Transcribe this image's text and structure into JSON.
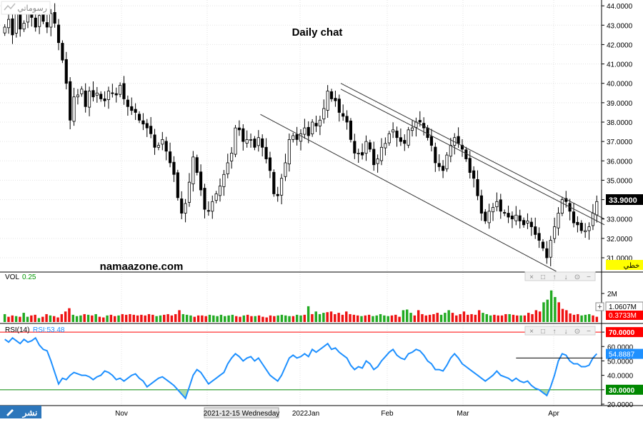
{
  "chart_data": [
    {
      "type": "candlestick",
      "title": "Daily chat",
      "watermark": "namaazone.com",
      "ylim": [
        30.3,
        44.3
      ],
      "y_ticks": [
        "44.0000",
        "43.0000",
        "42.0000",
        "41.0000",
        "40.0000",
        "39.0000",
        "38.0000",
        "37.0000",
        "36.0000",
        "35.0000",
        "34.0000",
        "33.0000",
        "32.0000",
        "31.0000"
      ],
      "x_labels": [
        "Nov",
        "2021-12-15 Wednesday",
        "2022Jan",
        "Feb",
        "Mar",
        "Apr"
      ],
      "last_price": "33.9000",
      "scale_label": "خطي",
      "closes": [
        42.9,
        43.3,
        42.5,
        43.6,
        42.8,
        43.1,
        43.7,
        43.4,
        42.9,
        43.5,
        43.2,
        42.9,
        43.6,
        43.1,
        42.1,
        41.2,
        40.0,
        38.1,
        39.3,
        39.4,
        39.7,
        38.8,
        39.6,
        39.3,
        39.5,
        39.2,
        39.1,
        39.6,
        39.5,
        39.4,
        39.9,
        39.2,
        38.8,
        38.6,
        38.5,
        38.1,
        37.9,
        37.7,
        37.4,
        36.7,
        36.8,
        37.1,
        36.5,
        35.9,
        35.3,
        34.1,
        33.3,
        33.8,
        34.9,
        36.2,
        35.4,
        34.5,
        33.5,
        33.4,
        33.9,
        34.3,
        34.7,
        35.3,
        35.9,
        36.4,
        37.7,
        37.6,
        37.0,
        37.1,
        37.1,
        36.7,
        37.2,
        36.7,
        36.1,
        35.5,
        34.3,
        34.2,
        35.1,
        35.9,
        37.1,
        37.3,
        37.1,
        37.4,
        37.7,
        37.3,
        38.0,
        37.8,
        38.1,
        38.7,
        39.6,
        39.2,
        39.1,
        38.5,
        38.3,
        38.0,
        37.1,
        36.4,
        36.4,
        36.3,
        37.0,
        36.6,
        35.8,
        36.1,
        36.7,
        36.9,
        37.4,
        37.6,
        37.2,
        37.0,
        36.9,
        37.6,
        37.7,
        38.0,
        38.0,
        37.7,
        37.2,
        36.8,
        35.9,
        35.7,
        35.5,
        36.3,
        36.8,
        37.2,
        36.9,
        36.6,
        36.1,
        35.4,
        35.1,
        34.2,
        33.3,
        32.9,
        33.4,
        33.6,
        33.9,
        33.4,
        33.3,
        33.1,
        33.0,
        33.2,
        32.9,
        32.7,
        32.9,
        32.6,
        32.2,
        31.9,
        31.5,
        31.0,
        31.9,
        32.6,
        33.3,
        34.0,
        33.9,
        33.4,
        32.8,
        32.7,
        32.4,
        32.4,
        32.6,
        33.3,
        33.9
      ],
      "ohlc_note": "candles reconstructed from visual estimate",
      "channel_lines": [
        {
          "from": [
            0.405,
            38.4
          ],
          "to": [
            0.865,
            30.3
          ]
        },
        {
          "from": [
            0.53,
            40.0
          ],
          "to": [
            0.94,
            33.0
          ]
        },
        {
          "from": [
            0.53,
            39.7
          ],
          "to": [
            0.94,
            32.7
          ]
        }
      ]
    },
    {
      "type": "bar",
      "title": "VOL",
      "label": "VOL",
      "value": "0.25",
      "ylim": [
        0,
        3.2
      ],
      "y_ticks": [
        "2M"
      ],
      "current_labels": [
        "1.0607M",
        "0.3733M"
      ],
      "values": [
        0.6,
        0.4,
        0.5,
        0.45,
        0.4,
        0.7,
        0.4,
        0.5,
        0.55,
        0.3,
        0.4,
        0.6,
        0.5,
        0.45,
        0.35,
        0.6,
        0.8,
        1.05,
        0.55,
        0.45,
        0.5,
        0.6,
        0.55,
        0.5,
        0.6,
        0.4,
        0.35,
        0.5,
        0.55,
        0.45,
        0.5,
        0.6,
        0.55,
        0.6,
        0.55,
        0.5,
        0.55,
        0.5,
        0.6,
        0.55,
        0.45,
        0.5,
        0.55,
        0.6,
        0.5,
        0.6,
        0.9,
        0.6,
        0.55,
        0.5,
        0.4,
        0.5,
        0.5,
        0.45,
        0.55,
        0.5,
        0.45,
        0.55,
        0.45,
        0.5,
        0.55,
        0.45,
        0.4,
        0.5,
        0.55,
        0.45,
        0.45,
        0.5,
        0.4,
        0.35,
        0.5,
        0.45,
        0.5,
        0.55,
        0.5,
        0.45,
        0.45,
        0.55,
        0.5,
        0.55,
        1.2,
        0.6,
        0.8,
        0.6,
        0.7,
        0.75,
        0.8,
        0.6,
        0.7,
        0.55,
        0.8,
        0.6,
        0.55,
        0.5,
        0.45,
        0.5,
        0.55,
        0.45,
        0.5,
        0.6,
        0.5,
        0.45,
        0.5,
        0.55,
        0.4,
        0.9,
        0.95,
        0.7,
        0.5,
        0.9,
        0.6,
        0.5,
        0.55,
        0.6,
        0.7,
        0.55,
        0.7,
        0.9,
        0.7,
        0.5,
        0.6,
        0.8,
        0.55,
        0.6,
        0.55,
        0.9,
        0.7,
        0.6,
        0.5,
        0.55,
        0.5,
        0.5,
        0.6,
        0.6,
        0.55,
        0.5,
        0.5,
        0.5,
        0.7,
        0.6,
        0.9,
        0.8,
        1.5,
        1.7,
        2.4,
        1.9,
        1.5,
        1.0,
        0.9,
        0.65,
        0.55,
        0.6,
        0.5,
        0.55,
        0.6,
        0.5,
        0.4
      ],
      "up_flags": [
        1,
        0,
        0,
        1,
        0,
        1,
        1,
        0,
        0,
        1,
        0,
        0,
        1,
        0,
        0,
        0,
        0,
        0,
        1,
        1,
        1,
        0,
        1,
        0,
        1,
        0,
        0,
        1,
        0,
        0,
        1,
        0,
        0,
        0,
        0,
        0,
        0,
        0,
        0,
        0,
        1,
        1,
        0,
        0,
        0,
        0,
        0,
        1,
        1,
        1,
        0,
        0,
        0,
        0,
        1,
        1,
        1,
        1,
        1,
        1,
        1,
        0,
        0,
        1,
        0,
        0,
        1,
        0,
        0,
        0,
        0,
        0,
        1,
        1,
        1,
        1,
        0,
        1,
        1,
        0,
        1,
        0,
        1,
        1,
        1,
        0,
        0,
        0,
        0,
        0,
        0,
        0,
        0,
        0,
        1,
        0,
        0,
        1,
        1,
        1,
        1,
        1,
        0,
        0,
        0,
        1,
        1,
        1,
        0,
        0,
        0,
        0,
        0,
        0,
        0,
        1,
        1,
        1,
        0,
        0,
        0,
        0,
        0,
        0,
        0,
        0,
        1,
        1,
        1,
        0,
        0,
        0,
        0,
        1,
        0,
        0,
        1,
        0,
        0,
        0,
        0,
        0,
        1,
        1,
        1,
        1,
        0,
        0,
        0,
        0,
        0,
        0,
        1,
        1,
        1
      ]
    },
    {
      "type": "line",
      "title": "RSI(14)",
      "label": "RSI(14)",
      "value_label": "RSI:53.48",
      "ylim": [
        20,
        75
      ],
      "y_ticks": [
        "70.0000",
        "60.0000",
        "50.0000",
        "40.0000",
        "30.0000",
        "20.0000"
      ],
      "overbought": "70.0000",
      "oversold": "30.0000",
      "current": "54.8887",
      "values": [
        65,
        63,
        66,
        64,
        62,
        65,
        63,
        64,
        66,
        61,
        58,
        57,
        50,
        42,
        34,
        38,
        37,
        40,
        42,
        41,
        40,
        40,
        39,
        37,
        39,
        40,
        43,
        42,
        40,
        37,
        38,
        36,
        38,
        40,
        41,
        38,
        36,
        32,
        34,
        36,
        38,
        39,
        37,
        35,
        33,
        30,
        27,
        24,
        32,
        40,
        44,
        42,
        38,
        34,
        36,
        38,
        40,
        42,
        48,
        52,
        55,
        53,
        50,
        52,
        53,
        50,
        52,
        48,
        44,
        40,
        38,
        36,
        40,
        46,
        52,
        54,
        52,
        53,
        55,
        53,
        58,
        56,
        58,
        60,
        62,
        58,
        59,
        56,
        54,
        52,
        47,
        44,
        46,
        45,
        50,
        48,
        44,
        46,
        50,
        53,
        56,
        58,
        54,
        52,
        51,
        55,
        56,
        58,
        57,
        54,
        50,
        48,
        44,
        44,
        43,
        47,
        52,
        55,
        52,
        48,
        46,
        44,
        42,
        40,
        38,
        36,
        38,
        40,
        43,
        40,
        39,
        38,
        36,
        38,
        36,
        35,
        36,
        33,
        31,
        30,
        28,
        26,
        32,
        40,
        50,
        55,
        54,
        50,
        48,
        48,
        46,
        46,
        47,
        52,
        55
      ],
      "horizontal_line": 52
    }
  ],
  "ui": {
    "logo_text": "رسوماتي",
    "publish_button": "نشر"
  }
}
